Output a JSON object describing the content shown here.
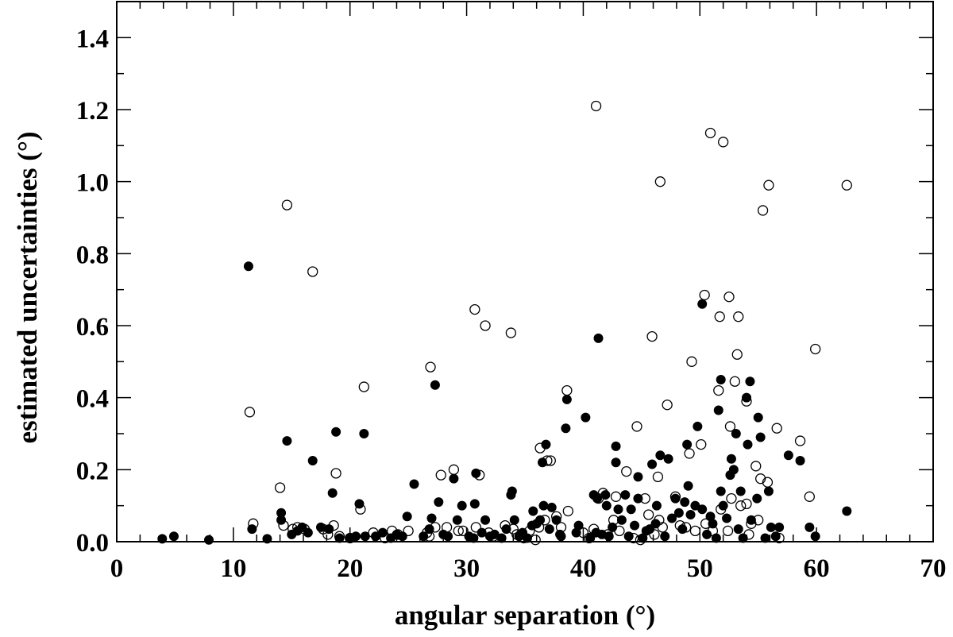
{
  "chart_data": {
    "type": "scatter",
    "title": "",
    "xlabel": "angular separation (°)",
    "ylabel": "estimated uncertainties (°)",
    "xlim": [
      0,
      70
    ],
    "ylim": [
      0,
      1.5
    ],
    "x_ticks": [
      0,
      10,
      20,
      30,
      40,
      50,
      60,
      70
    ],
    "x_tick_labels": [
      "0",
      "10",
      "20",
      "30",
      "40",
      "50",
      "60",
      "70"
    ],
    "y_ticks": [
      0.0,
      0.2,
      0.4,
      0.6,
      0.8,
      1.0,
      1.2,
      1.4
    ],
    "y_tick_labels": [
      "0.0",
      "0.2",
      "0.4",
      "0.6",
      "0.8",
      "1.0",
      "1.2",
      "1.4"
    ],
    "grid": false,
    "legend": "none",
    "colors": {
      "marker": "#000000",
      "axis": "#000000",
      "background": "#ffffff"
    },
    "series": [
      {
        "marker": "filled-circle",
        "points": [
          [
            3.9,
            0.008
          ],
          [
            4.9,
            0.015
          ],
          [
            7.9,
            0.005
          ],
          [
            11.3,
            0.765
          ],
          [
            11.6,
            0.035
          ],
          [
            12.9,
            0.008
          ],
          [
            14.1,
            0.08
          ],
          [
            14.1,
            0.06
          ],
          [
            14.6,
            0.28
          ],
          [
            15.0,
            0.02
          ],
          [
            15.5,
            0.03
          ],
          [
            15.9,
            0.04
          ],
          [
            16.4,
            0.025
          ],
          [
            16.8,
            0.225
          ],
          [
            17.5,
            0.04
          ],
          [
            18.2,
            0.035
          ],
          [
            18.5,
            0.135
          ],
          [
            18.8,
            0.305
          ],
          [
            19.1,
            0.01
          ],
          [
            20.0,
            0.01
          ],
          [
            20.5,
            0.015
          ],
          [
            20.8,
            0.105
          ],
          [
            21.2,
            0.3
          ],
          [
            21.3,
            0.015
          ],
          [
            22.2,
            0.015
          ],
          [
            22.8,
            0.025
          ],
          [
            23.5,
            0.01
          ],
          [
            24.0,
            0.02
          ],
          [
            24.5,
            0.015
          ],
          [
            24.9,
            0.07
          ],
          [
            25.5,
            0.16
          ],
          [
            26.3,
            0.015
          ],
          [
            26.8,
            0.035
          ],
          [
            27.0,
            0.065
          ],
          [
            27.3,
            0.435
          ],
          [
            27.6,
            0.11
          ],
          [
            28.0,
            0.02
          ],
          [
            28.4,
            0.015
          ],
          [
            28.9,
            0.175
          ],
          [
            29.2,
            0.06
          ],
          [
            29.6,
            0.1
          ],
          [
            30.2,
            0.015
          ],
          [
            30.6,
            0.01
          ],
          [
            30.7,
            0.105
          ],
          [
            30.8,
            0.19
          ],
          [
            31.3,
            0.025
          ],
          [
            31.6,
            0.06
          ],
          [
            32.0,
            0.015
          ],
          [
            32.4,
            0.02
          ],
          [
            33.0,
            0.01
          ],
          [
            33.4,
            0.035
          ],
          [
            33.8,
            0.13
          ],
          [
            33.9,
            0.14
          ],
          [
            34.1,
            0.06
          ],
          [
            34.5,
            0.015
          ],
          [
            34.8,
            0.025
          ],
          [
            35.2,
            0.01
          ],
          [
            35.6,
            0.045
          ],
          [
            35.7,
            0.085
          ],
          [
            36.0,
            0.05
          ],
          [
            36.3,
            0.06
          ],
          [
            36.5,
            0.22
          ],
          [
            36.6,
            0.1
          ],
          [
            36.8,
            0.27
          ],
          [
            37.1,
            0.035
          ],
          [
            37.3,
            0.095
          ],
          [
            37.7,
            0.06
          ],
          [
            38.0,
            0.02
          ],
          [
            38.1,
            0.015
          ],
          [
            38.5,
            0.315
          ],
          [
            38.6,
            0.395
          ],
          [
            39.4,
            0.025
          ],
          [
            39.6,
            0.045
          ],
          [
            40.2,
            0.345
          ],
          [
            40.6,
            0.01
          ],
          [
            40.9,
            0.13
          ],
          [
            41.1,
            0.025
          ],
          [
            41.2,
            0.12
          ],
          [
            41.3,
            0.565
          ],
          [
            41.6,
            0.02
          ],
          [
            41.9,
            0.13
          ],
          [
            42.0,
            0.1
          ],
          [
            42.2,
            0.015
          ],
          [
            42.5,
            0.04
          ],
          [
            42.8,
            0.265
          ],
          [
            42.8,
            0.22
          ],
          [
            43.0,
            0.09
          ],
          [
            43.3,
            0.06
          ],
          [
            43.6,
            0.13
          ],
          [
            43.9,
            0.015
          ],
          [
            44.1,
            0.09
          ],
          [
            44.4,
            0.045
          ],
          [
            44.7,
            0.18
          ],
          [
            44.7,
            0.12
          ],
          [
            45.1,
            0.01
          ],
          [
            45.4,
            0.03
          ],
          [
            45.7,
            0.035
          ],
          [
            45.9,
            0.215
          ],
          [
            46.2,
            0.05
          ],
          [
            46.3,
            0.1
          ],
          [
            46.6,
            0.24
          ],
          [
            47.0,
            0.015
          ],
          [
            47.3,
            0.23
          ],
          [
            47.6,
            0.065
          ],
          [
            47.9,
            0.12
          ],
          [
            48.2,
            0.08
          ],
          [
            48.5,
            0.035
          ],
          [
            48.7,
            0.11
          ],
          [
            48.9,
            0.27
          ],
          [
            49.0,
            0.155
          ],
          [
            49.2,
            0.075
          ],
          [
            49.6,
            0.1
          ],
          [
            49.8,
            0.32
          ],
          [
            50.2,
            0.66
          ],
          [
            50.2,
            0.09
          ],
          [
            50.6,
            0.02
          ],
          [
            50.9,
            0.07
          ],
          [
            51.1,
            0.05
          ],
          [
            51.4,
            0.01
          ],
          [
            51.6,
            0.365
          ],
          [
            51.8,
            0.45
          ],
          [
            51.8,
            0.14
          ],
          [
            52.0,
            0.1
          ],
          [
            52.3,
            0.065
          ],
          [
            52.6,
            0.185
          ],
          [
            52.7,
            0.23
          ],
          [
            52.9,
            0.2
          ],
          [
            53.1,
            0.3
          ],
          [
            53.3,
            0.035
          ],
          [
            53.5,
            0.14
          ],
          [
            53.7,
            0.01
          ],
          [
            54.0,
            0.4
          ],
          [
            54.1,
            0.27
          ],
          [
            54.3,
            0.445
          ],
          [
            54.4,
            0.06
          ],
          [
            54.9,
            0.12
          ],
          [
            55.0,
            0.345
          ],
          [
            55.2,
            0.29
          ],
          [
            55.6,
            0.01
          ],
          [
            55.9,
            0.14
          ],
          [
            56.1,
            0.04
          ],
          [
            56.5,
            0.015
          ],
          [
            56.8,
            0.04
          ],
          [
            57.6,
            0.24
          ],
          [
            58.6,
            0.225
          ],
          [
            59.4,
            0.04
          ],
          [
            59.9,
            0.015
          ],
          [
            62.6,
            0.085
          ]
        ]
      },
      {
        "marker": "open-circle",
        "points": [
          [
            11.4,
            0.36
          ],
          [
            11.7,
            0.05
          ],
          [
            14.0,
            0.15
          ],
          [
            14.3,
            0.045
          ],
          [
            14.6,
            0.935
          ],
          [
            15.1,
            0.035
          ],
          [
            15.5,
            0.04
          ],
          [
            16.1,
            0.035
          ],
          [
            16.8,
            0.75
          ],
          [
            17.7,
            0.035
          ],
          [
            18.1,
            0.02
          ],
          [
            18.6,
            0.045
          ],
          [
            18.8,
            0.19
          ],
          [
            19.1,
            0.015
          ],
          [
            20.0,
            0.01
          ],
          [
            20.9,
            0.09
          ],
          [
            21.2,
            0.43
          ],
          [
            22.0,
            0.025
          ],
          [
            23.0,
            0.01
          ],
          [
            23.6,
            0.03
          ],
          [
            24.1,
            0.02
          ],
          [
            25.0,
            0.03
          ],
          [
            26.6,
            0.025
          ],
          [
            26.8,
            0.015
          ],
          [
            26.9,
            0.485
          ],
          [
            27.3,
            0.04
          ],
          [
            27.8,
            0.185
          ],
          [
            28.3,
            0.04
          ],
          [
            28.9,
            0.2
          ],
          [
            29.3,
            0.03
          ],
          [
            29.7,
            0.03
          ],
          [
            30.7,
            0.645
          ],
          [
            30.8,
            0.04
          ],
          [
            31.1,
            0.185
          ],
          [
            31.6,
            0.6
          ],
          [
            31.9,
            0.025
          ],
          [
            32.3,
            0.015
          ],
          [
            33.3,
            0.045
          ],
          [
            33.8,
            0.58
          ],
          [
            34.0,
            0.035
          ],
          [
            34.3,
            0.02
          ],
          [
            34.9,
            0.01
          ],
          [
            35.4,
            0.03
          ],
          [
            35.9,
            0.005
          ],
          [
            36.2,
            0.04
          ],
          [
            36.3,
            0.26
          ],
          [
            36.7,
            0.06
          ],
          [
            36.9,
            0.225
          ],
          [
            37.2,
            0.225
          ],
          [
            37.7,
            0.07
          ],
          [
            38.1,
            0.04
          ],
          [
            38.6,
            0.42
          ],
          [
            38.7,
            0.085
          ],
          [
            40.0,
            0.025
          ],
          [
            40.5,
            0.01
          ],
          [
            40.9,
            0.035
          ],
          [
            41.1,
            1.21
          ],
          [
            41.3,
            0.12
          ],
          [
            41.7,
            0.135
          ],
          [
            42.1,
            0.02
          ],
          [
            42.6,
            0.06
          ],
          [
            42.8,
            0.125
          ],
          [
            43.1,
            0.03
          ],
          [
            43.7,
            0.195
          ],
          [
            44.3,
            0.01
          ],
          [
            44.6,
            0.32
          ],
          [
            44.9,
            0.005
          ],
          [
            45.3,
            0.12
          ],
          [
            45.6,
            0.075
          ],
          [
            45.9,
            0.57
          ],
          [
            46.1,
            0.02
          ],
          [
            46.4,
            0.18
          ],
          [
            46.5,
            0.06
          ],
          [
            46.6,
            1.0
          ],
          [
            46.8,
            0.04
          ],
          [
            47.2,
            0.38
          ],
          [
            47.9,
            0.125
          ],
          [
            48.3,
            0.045
          ],
          [
            48.8,
            0.04
          ],
          [
            49.1,
            0.245
          ],
          [
            49.3,
            0.5
          ],
          [
            49.6,
            0.03
          ],
          [
            50.1,
            0.27
          ],
          [
            50.4,
            0.685
          ],
          [
            50.5,
            0.05
          ],
          [
            50.9,
            1.135
          ],
          [
            51.1,
            0.03
          ],
          [
            51.6,
            0.42
          ],
          [
            51.7,
            0.625
          ],
          [
            51.8,
            0.09
          ],
          [
            52.0,
            1.11
          ],
          [
            52.4,
            0.03
          ],
          [
            52.5,
            0.68
          ],
          [
            52.6,
            0.32
          ],
          [
            52.7,
            0.12
          ],
          [
            53.0,
            0.445
          ],
          [
            53.2,
            0.52
          ],
          [
            53.3,
            0.625
          ],
          [
            53.5,
            0.1
          ],
          [
            54.0,
            0.39
          ],
          [
            54.0,
            0.105
          ],
          [
            54.2,
            0.02
          ],
          [
            54.4,
            0.05
          ],
          [
            54.8,
            0.21
          ],
          [
            55.0,
            0.06
          ],
          [
            55.2,
            0.175
          ],
          [
            55.4,
            0.92
          ],
          [
            55.8,
            0.165
          ],
          [
            55.9,
            0.99
          ],
          [
            56.6,
            0.315
          ],
          [
            56.8,
            0.01
          ],
          [
            58.6,
            0.28
          ],
          [
            59.4,
            0.125
          ],
          [
            59.9,
            0.535
          ],
          [
            62.6,
            0.99
          ]
        ]
      }
    ]
  }
}
